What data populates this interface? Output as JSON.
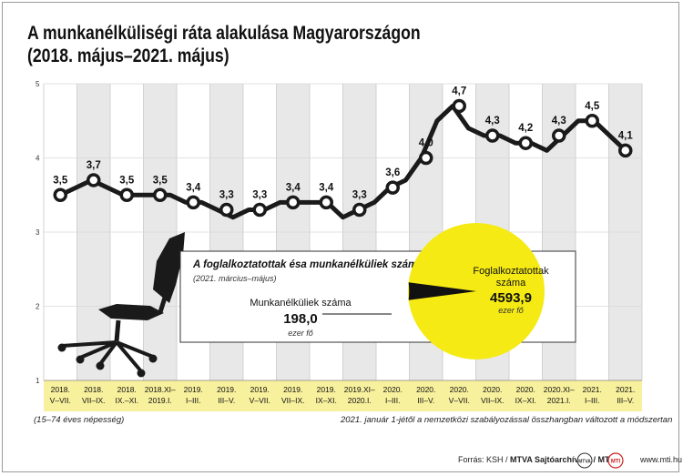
{
  "title": {
    "line1": "A munkanélküliségi ráta alakulása Magyarországon",
    "line2": "(2018. május–2021. május)"
  },
  "chart_data": {
    "type": "line",
    "title": "A munkanélküliségi ráta alakulása Magyarországon (2018. május–2021. május)",
    "ylim": [
      1,
      5
    ],
    "yticks": [
      "1",
      "2",
      "3",
      "4",
      "5"
    ],
    "grid": true,
    "categories": [
      [
        "2018.",
        "V–VII."
      ],
      [
        "2018.",
        "VII–IX."
      ],
      [
        "2018.",
        "IX.–XI."
      ],
      [
        "2018.XI–",
        "2019.I."
      ],
      [
        "2019.",
        "I–III."
      ],
      [
        "2019.",
        "III–V."
      ],
      [
        "2019.",
        "V–VII."
      ],
      [
        "2019.",
        "VII–IX."
      ],
      [
        "2019.",
        "IX–XI."
      ],
      [
        "2019.XI–",
        "2020.I."
      ],
      [
        "2020.",
        "I–III."
      ],
      [
        "2020.",
        "III–V."
      ],
      [
        "2020.",
        "V–VII."
      ],
      [
        "2020.",
        "VII–IX."
      ],
      [
        "2020.",
        "IX–XI."
      ],
      [
        "2020.XI–",
        "2021.I."
      ],
      [
        "2021.",
        "I–III."
      ],
      [
        "2021.",
        "III–V."
      ]
    ],
    "labeled_values": [
      3.5,
      3.7,
      3.5,
      3.5,
      3.4,
      3.3,
      3.3,
      3.4,
      3.4,
      3.3,
      3.6,
      4.0,
      4.7,
      4.3,
      4.2,
      4.3,
      4.5,
      4.1
    ],
    "labels": [
      "3,5",
      "3,7",
      "3,5",
      "3,5",
      "3,4",
      "3,3",
      "3,3",
      "3,4",
      "3,4",
      "3,3",
      "3,6",
      "4,0",
      "4,7",
      "4,3",
      "4,2",
      "4,3",
      "4,5",
      "4,1"
    ],
    "monthly_values": [
      3.5,
      3.6,
      3.7,
      3.6,
      3.5,
      3.5,
      3.5,
      3.5,
      3.4,
      3.4,
      3.3,
      3.2,
      3.3,
      3.3,
      3.4,
      3.4,
      3.4,
      3.4,
      3.2,
      3.3,
      3.4,
      3.6,
      3.7,
      4.0,
      4.5,
      4.7,
      4.4,
      4.3,
      4.3,
      4.2,
      4.2,
      4.1,
      4.3,
      4.5,
      4.5,
      4.3,
      4.1
    ],
    "inset": {
      "title": "A foglalkoztatottak ésa munkanélküliek száma",
      "subtitle": "(2021. március–május)",
      "type": "pie",
      "slices": [
        {
          "name": "Munkanélküliek száma",
          "value": 198.0,
          "label": "198,0",
          "unit": "ezer fő",
          "color": "#111111"
        },
        {
          "name": "Foglalkoztatottak száma",
          "value": 4593.9,
          "label": "4593,9",
          "unit": "ezer fő",
          "color": "#f5ea14"
        }
      ]
    },
    "colors": {
      "line": "#1a1a1a",
      "band": "#f7f09d",
      "pie": "#f5ea14",
      "grid": "#c8c8c8",
      "axis": "#888888"
    }
  },
  "notes": {
    "population": "(15–74 éves népesség)",
    "method": "2021. január 1-jétől a nemzetközi szabályozással összhangban változott a módszertan"
  },
  "footer": {
    "source_prefix": "Forrás: KSH / ",
    "source_bold": "MTVA Sajtóarchívum / MTI",
    "website": "www.mti.hu",
    "mtva_logo_text": "MTVA",
    "mti_logo_text": "MTI"
  }
}
